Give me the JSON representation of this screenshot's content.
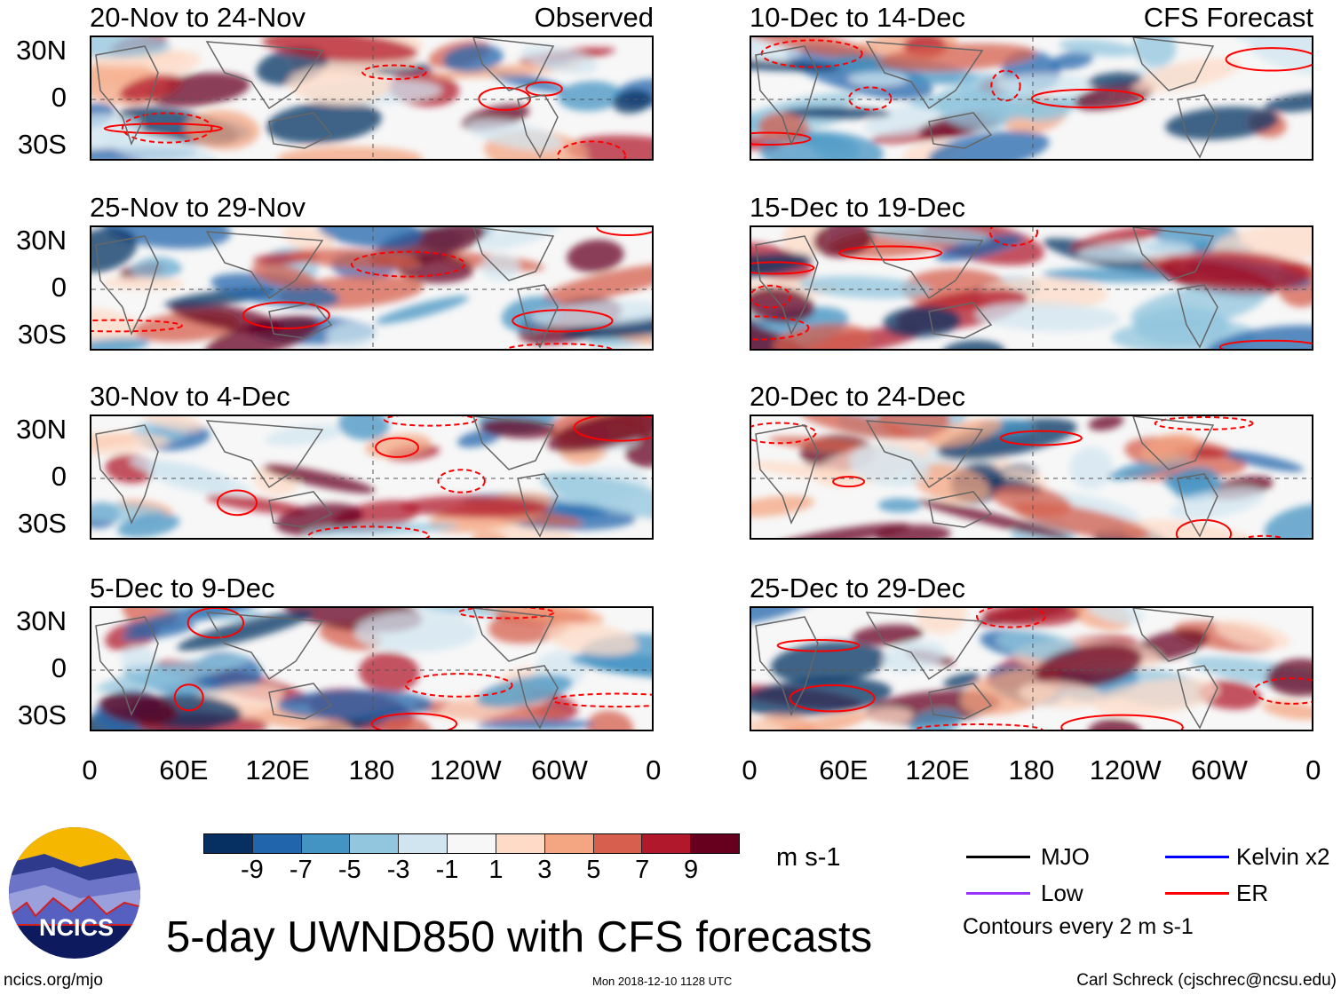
{
  "observed_label": "Observed",
  "forecast_label": "CFS Forecast",
  "panels_left": [
    "20-Nov to 24-Nov",
    "25-Nov to 29-Nov",
    "30-Nov to 4-Dec",
    "5-Dec to 9-Dec"
  ],
  "panels_right": [
    "10-Dec to 14-Dec",
    "15-Dec to 19-Dec",
    "20-Dec to 24-Dec",
    "25-Dec to 29-Dec"
  ],
  "lat_labels": [
    "30N",
    "0",
    "30S"
  ],
  "lon_labels": [
    "0",
    "60E",
    "120E",
    "180",
    "120W",
    "60W",
    "0"
  ],
  "colorbar": {
    "colors": [
      "#053061",
      "#2166ac",
      "#4393c3",
      "#92c5de",
      "#d1e5f0",
      "#f7f7f7",
      "#fddbc7",
      "#f4a582",
      "#d6604d",
      "#b2182b",
      "#67001f"
    ],
    "labels": [
      "-9",
      "-7",
      "-5",
      "-3",
      "-1",
      "1",
      "3",
      "5",
      "7",
      "9"
    ],
    "units": "m s-1"
  },
  "legend": {
    "items": [
      {
        "label": "MJO",
        "color": "#000000"
      },
      {
        "label": "Kelvin x2",
        "color": "#0000ff"
      },
      {
        "label": "Low",
        "color": "#9933ff"
      },
      {
        "label": "ER",
        "color": "#ff0000"
      }
    ],
    "note": "Contours every 2 m s-1"
  },
  "title": "5-day UWND850 with CFS forecasts",
  "logo_text": "NCICS",
  "footer": {
    "left": "ncics.org/mjo",
    "center": "Mon 2018-12-10 1128 UTC",
    "right": "Carl Schreck (cjschrec@ncsu.edu)"
  }
}
